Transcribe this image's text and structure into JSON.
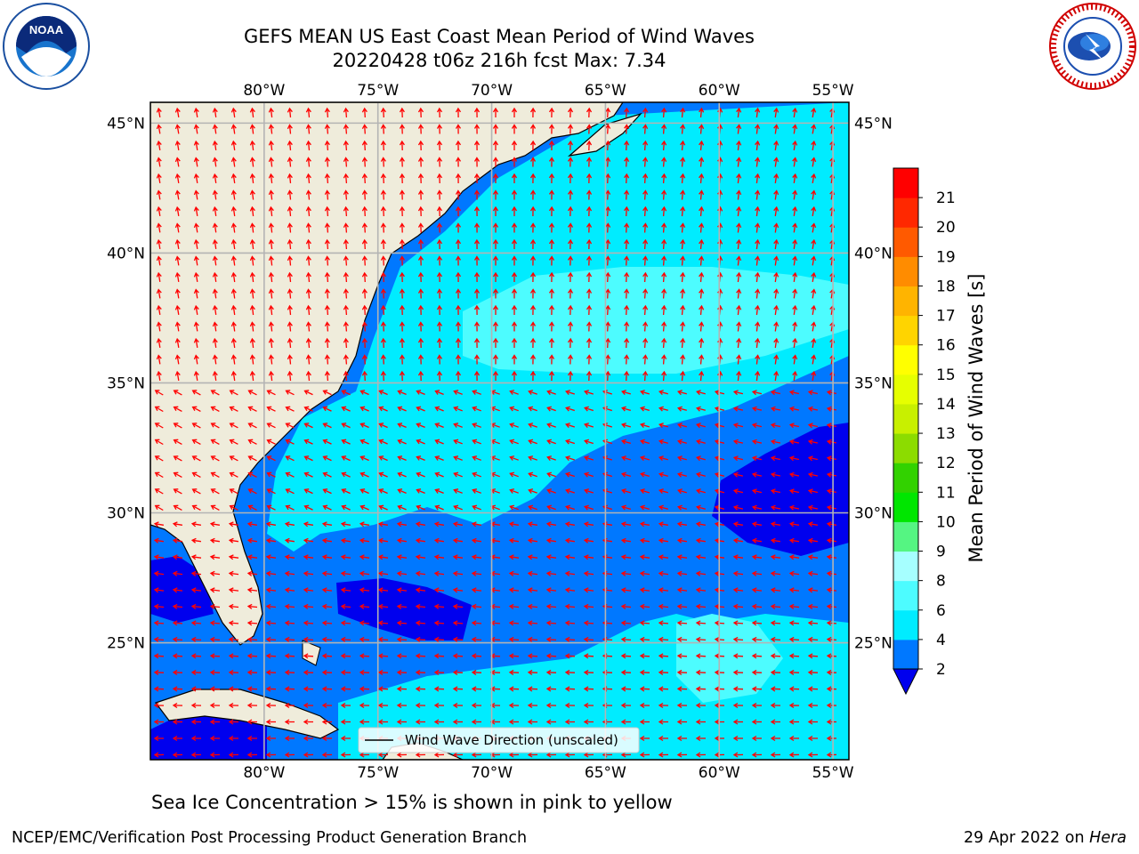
{
  "title_line1": "GEFS MEAN US East Coast Mean Period of Wind Waves",
  "title_line2": "20220428 t06z 216h fcst   Max: 7.34",
  "caption": "Sea Ice Concentration > 15% is shown in pink to yellow",
  "footer_left": "NCEP/EMC/Verification Post Processing Product Generation Branch",
  "footer_right_date": "29 Apr 2022 on",
  "footer_right_host": "Hera",
  "legend_label": "Wind Wave Direction (unscaled)",
  "lon_labels": [
    "80°W",
    "75°W",
    "70°W",
    "65°W",
    "60°W",
    "55°W"
  ],
  "lat_labels": [
    "45°N",
    "40°N",
    "35°N",
    "30°N",
    "25°N"
  ],
  "lon_values": [
    -80,
    -75,
    -70,
    -65,
    -60,
    -55
  ],
  "lat_values": [
    45,
    40,
    35,
    30,
    25
  ],
  "extent": {
    "lon_min": -85,
    "lon_max": -54.3,
    "lat_min": 20.5,
    "lat_max": 45.8
  },
  "colorbar": {
    "label": "Mean Period of Wind Waves [s]",
    "tick_labels": [
      "2",
      "4",
      "6",
      "8",
      "9",
      "10",
      "11",
      "12",
      "13",
      "14",
      "15",
      "16",
      "17",
      "18",
      "19",
      "20",
      "21"
    ],
    "under_color": "#0000ee",
    "colors": [
      "#0078ff",
      "#00ecff",
      "#4dfcff",
      "#a6ffff",
      "#55f582",
      "#00e600",
      "#32d200",
      "#8cdc00",
      "#c8f000",
      "#e6ff00",
      "#ffff00",
      "#ffd400",
      "#ffb400",
      "#ff8c00",
      "#ff5a00",
      "#ff2800",
      "#ff0000"
    ]
  },
  "colors": {
    "land": "#efecdb",
    "arrow": "#ff0000",
    "grid": "#b4b4b4"
  },
  "logos": {
    "left": "NOAA",
    "right": "NATIONAL WEATHER SERVICE"
  }
}
